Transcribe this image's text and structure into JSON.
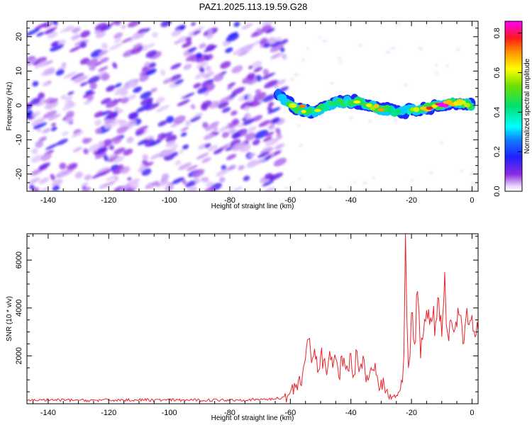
{
  "figure": {
    "title": "PAZ1.2025.113.19.59.G28"
  },
  "chart_data": [
    {
      "type": "heatmap",
      "xlabel": "Height of straight line (km)",
      "ylabel": "Frequency (Hz)",
      "xlim": [
        -147,
        2
      ],
      "ylim": [
        -25,
        24.5
      ],
      "xticks": [
        -140,
        -120,
        -100,
        -80,
        -60,
        -40,
        -20,
        0
      ],
      "xtick_labels": [
        "-140",
        "-120",
        "-100",
        "-80",
        "-60",
        "-40",
        "-20",
        "0"
      ],
      "yticks": [
        -20,
        -10,
        0,
        10,
        20
      ],
      "ytick_labels": [
        "-20",
        "-10",
        "0",
        "10",
        "20"
      ],
      "colorbar": {
        "label": "Normalized spectral amplitude",
        "range": [
          0,
          0.86
        ],
        "ticks": [
          0.0,
          0.2,
          0.4,
          0.6,
          0.8
        ],
        "tick_labels": [
          "0.0",
          "0.2",
          "0.4",
          "0.6",
          "0.8"
        ],
        "colormap": "gist_ncar-like (white, violet, blue, cyan, green, yellow, red, magenta)"
      },
      "description_points": [
        {
          "x": -64,
          "y": 3,
          "value": 0.3
        },
        {
          "x": -58,
          "y": -1,
          "value": 0.6
        },
        {
          "x": -52,
          "y": -2,
          "value": 0.5
        },
        {
          "x": -45,
          "y": 1,
          "value": 0.45
        },
        {
          "x": -38,
          "y": 1,
          "value": 0.55
        },
        {
          "x": -30,
          "y": -1,
          "value": 0.6
        },
        {
          "x": -24,
          "y": -2,
          "value": 0.4
        },
        {
          "x": -17,
          "y": -1,
          "value": 0.55
        },
        {
          "x": -10,
          "y": 0,
          "value": 0.86
        },
        {
          "x": -4,
          "y": 1,
          "value": 0.6
        },
        {
          "x": 0,
          "y": 0,
          "value": 0.55
        }
      ]
    },
    {
      "type": "line",
      "xlabel": "Height of straight line (km)",
      "ylabel": "SNR (10 * v/v)",
      "xlim": [
        -147,
        2
      ],
      "ylim": [
        0,
        7100
      ],
      "xticks": [
        -140,
        -120,
        -100,
        -80,
        -60,
        -40,
        -20,
        0
      ],
      "xtick_labels": [
        "-140",
        "-120",
        "-100",
        "-80",
        "-60",
        "-40",
        "-20",
        "0"
      ],
      "yticks": [
        2000,
        4000,
        6000
      ],
      "ytick_labels": [
        "2000",
        "4000",
        "6000"
      ],
      "series": [
        {
          "color": "#e8232a",
          "x": [
            -147,
            -140,
            -130,
            -120,
            -110,
            -100,
            -90,
            -80,
            -70,
            -64,
            -62,
            -60,
            -58,
            -56,
            -55,
            -54,
            -53,
            -52,
            -51,
            -50,
            -49,
            -48,
            -47,
            -46,
            -45,
            -44,
            -43,
            -42,
            -41,
            -40,
            -39,
            -38,
            -37,
            -36,
            -35,
            -34,
            -33,
            -32,
            -31,
            -30,
            -29,
            -28,
            -27,
            -26,
            -25,
            -24,
            -23,
            -22.5,
            -22,
            -21.5,
            -21,
            -20.5,
            -20,
            -19,
            -18,
            -17.5,
            -17,
            -16,
            -15,
            -14,
            -13,
            -12,
            -11,
            -10,
            -9,
            -8.5,
            -8,
            -7,
            -6,
            -5,
            -4,
            -3,
            -2,
            -1,
            0,
            1,
            2
          ],
          "y": [
            150,
            160,
            140,
            150,
            160,
            150,
            150,
            160,
            170,
            220,
            300,
            500,
            800,
            1200,
            1900,
            2700,
            1700,
            2300,
            1300,
            2000,
            1800,
            1200,
            2200,
            1500,
            1900,
            1100,
            2000,
            1600,
            1400,
            2100,
            1200,
            2200,
            1500,
            2000,
            900,
            1100,
            1400,
            1700,
            900,
            1000,
            800,
            600,
            400,
            300,
            350,
            500,
            900,
            2000,
            7100,
            3500,
            1500,
            2000,
            3800,
            2500,
            4700,
            3800,
            1900,
            3000,
            3900,
            3300,
            3600,
            3400,
            4400,
            2800,
            5500,
            3300,
            2900,
            3500,
            3000,
            3200,
            3700,
            2500,
            3600,
            3300,
            3700,
            2800,
            3100
          ]
        }
      ]
    }
  ]
}
